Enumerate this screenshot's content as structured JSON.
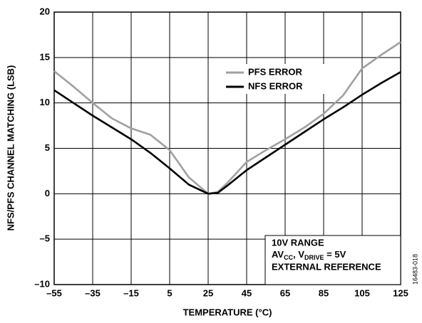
{
  "chart_data": {
    "type": "line",
    "x_label": "TEMPERATURE (°C)",
    "y_label": "NFS/PFS CHANNEL MATCHING (LSB)",
    "x": [
      -55,
      -45,
      -35,
      -25,
      -15,
      -5,
      5,
      15,
      25,
      30,
      35,
      45,
      55,
      65,
      75,
      85,
      95,
      105,
      115,
      125
    ],
    "series": [
      {
        "name": "PFS ERROR",
        "color": "#a0a0a0",
        "values": [
          13.5,
          11.8,
          10,
          8.3,
          7.2,
          6.5,
          4.8,
          1.8,
          0,
          0.2,
          1.2,
          3.5,
          4.8,
          6,
          7.3,
          8.8,
          10.8,
          13.8,
          15.3,
          16.7
        ]
      },
      {
        "name": "NFS ERROR",
        "color": "#000000",
        "values": [
          11.4,
          10,
          8.6,
          7.3,
          6,
          4.5,
          2.8,
          1,
          0,
          0.1,
          0.9,
          2.6,
          4,
          5.4,
          6.8,
          8.2,
          9.5,
          10.9,
          12.2,
          13.4
        ]
      }
    ],
    "xlim": [
      -55,
      125
    ],
    "ylim": [
      -10,
      20
    ],
    "xticks": [
      {
        "value": -55,
        "label": "–55"
      },
      {
        "value": -35,
        "label": "–35"
      },
      {
        "value": -15,
        "label": "–15"
      },
      5,
      25,
      45,
      65,
      85,
      105,
      125
    ],
    "yticks": [
      {
        "value": -10,
        "label": "–10"
      },
      {
        "value": -5,
        "label": "–5"
      },
      0,
      5,
      10,
      15,
      20
    ],
    "grid": true,
    "annotations": [
      "10V RANGE",
      [
        "AV",
        "CC",
        ", V",
        "DRIVE",
        " = 5V"
      ],
      "EXTERNAL REFERENCE"
    ],
    "figure_id": "16483-018"
  }
}
